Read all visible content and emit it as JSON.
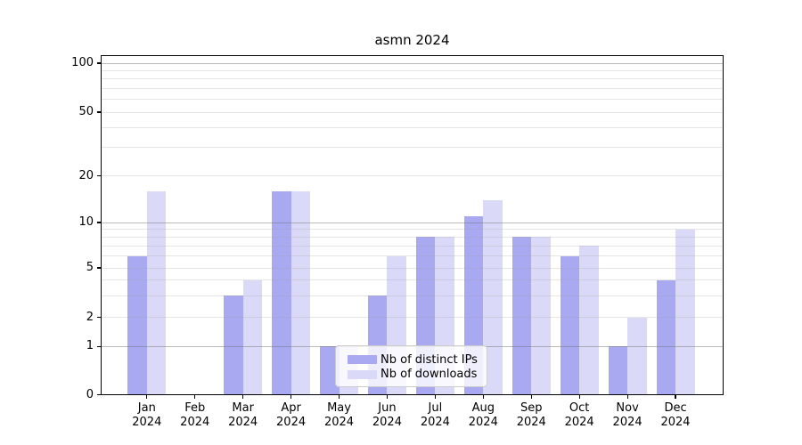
{
  "title": "asmn 2024",
  "colors": {
    "bar_distinct_ips": "#a9a9f2",
    "bar_downloads": "#dadaf8",
    "axis": "#000000",
    "major_grid": "#bfbfbf",
    "minor_grid": "#e7e7e7",
    "legend_border": "#cccccc"
  },
  "chart_data": {
    "type": "bar",
    "title": "asmn 2024",
    "xlabel": "",
    "ylabel": "",
    "categories": [
      "Jan 2024",
      "Feb 2024",
      "Mar 2024",
      "Apr 2024",
      "May 2024",
      "Jun 2024",
      "Jul 2024",
      "Aug 2024",
      "Sep 2024",
      "Oct 2024",
      "Nov 2024",
      "Dec 2024"
    ],
    "x": {
      "months": [
        "Jan",
        "Feb",
        "Mar",
        "Apr",
        "May",
        "Jun",
        "Jul",
        "Aug",
        "Sep",
        "Oct",
        "Nov",
        "Dec"
      ],
      "year": "2024"
    },
    "series": [
      {
        "name": "Nb of distinct IPs",
        "color": "#a9a9f2",
        "values": [
          6,
          0,
          3,
          16,
          1,
          3,
          8,
          11,
          8,
          6,
          1,
          4
        ]
      },
      {
        "name": "Nb of downloads",
        "color": "#dadaf8",
        "values": [
          16,
          0,
          4,
          16,
          1,
          6,
          8,
          14,
          8,
          7,
          2,
          9
        ]
      }
    ],
    "y_axis": {
      "scale": "log above 1, linear 0-1",
      "tick_values": [
        0,
        1,
        2,
        5,
        10,
        20,
        50,
        100
      ],
      "tick_labels": [
        "0",
        "1",
        "2",
        "5",
        "10",
        "20",
        "50",
        "100"
      ],
      "major_grid_values": [
        1,
        10,
        100
      ],
      "minor_grid_values": [
        2,
        3,
        4,
        5,
        6,
        7,
        8,
        9,
        20,
        30,
        40,
        50,
        60,
        70,
        80,
        90
      ],
      "ylim": [
        0,
        112
      ]
    },
    "grid": true,
    "legend": {
      "location": "lower center",
      "entries": [
        "Nb of distinct IPs",
        "Nb of downloads"
      ]
    }
  }
}
